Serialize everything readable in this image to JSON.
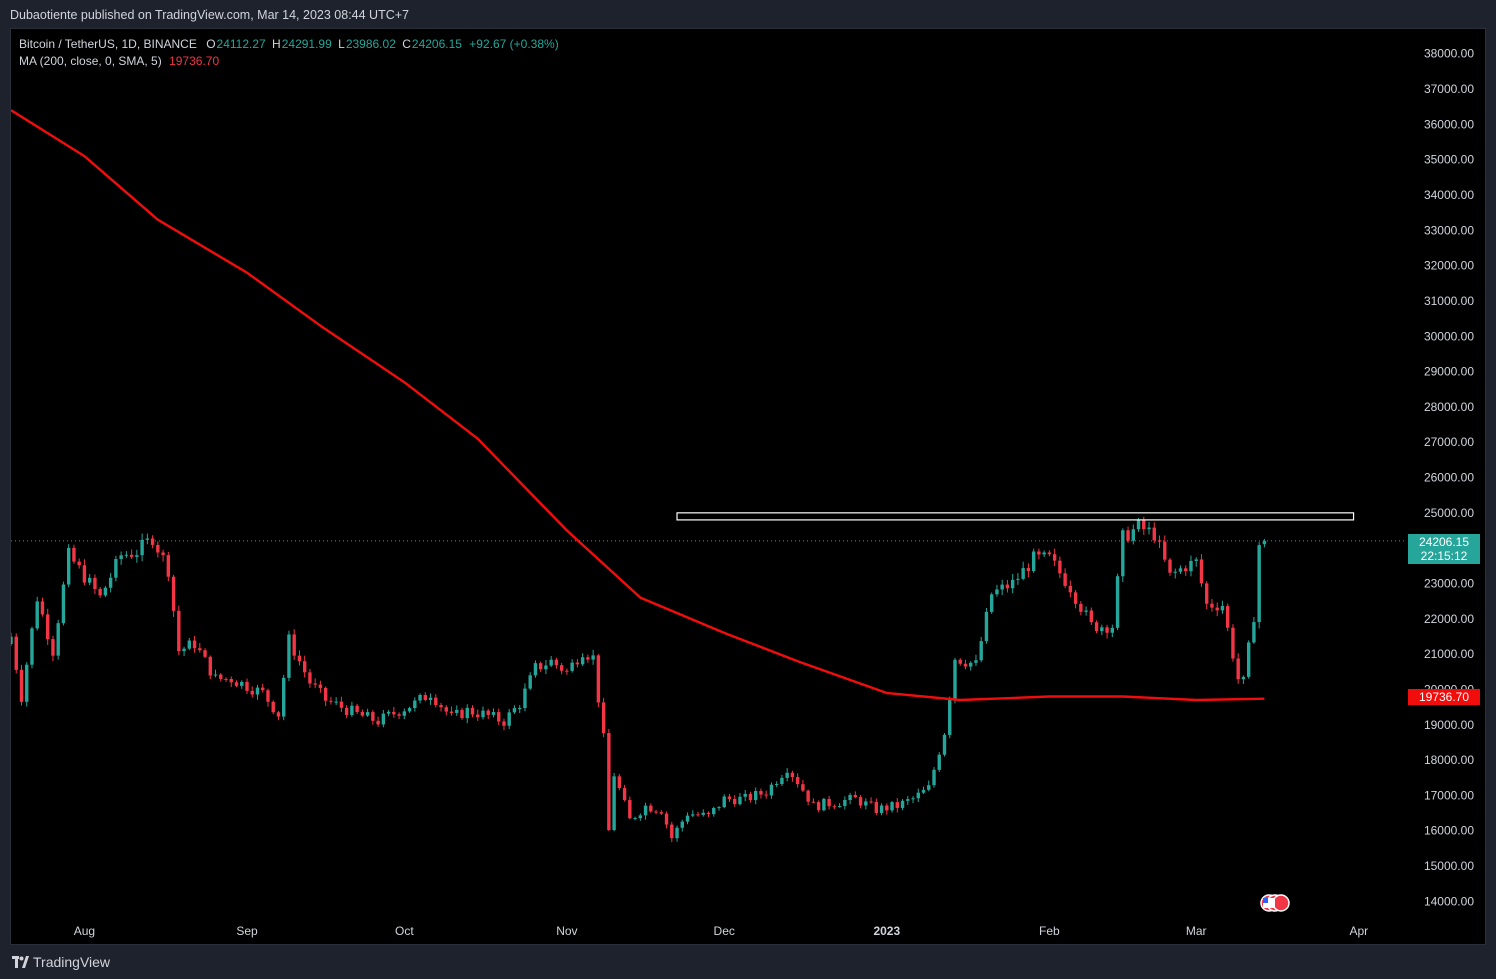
{
  "header": {
    "published_text": "Dubaotiente published on TradingView.com, Mar 14, 2023 08:44 UTC+7"
  },
  "legend": {
    "symbol": "Bitcoin / TetherUS, 1D, BINANCE",
    "open_label": "O",
    "open": "24112.27",
    "high_label": "H",
    "high": "24291.99",
    "low_label": "L",
    "low": "23986.02",
    "close_label": "C",
    "close": "24206.15",
    "change": "+92.67 (+0.38%)",
    "ma_label": "MA (200, close, 0, SMA, 5)",
    "ma_value": "19736.70"
  },
  "badges": {
    "last_price": "24206.15",
    "countdown": "22:15:12",
    "ma_price": "19736.70"
  },
  "footer": {
    "brand": "TradingView"
  },
  "colors": {
    "up": "#26a69a",
    "down": "#f23645",
    "ma": "#f20d0d",
    "background": "#000000",
    "axis_text": "#d1d4dc",
    "box": "#ffffff"
  },
  "chart_data": {
    "type": "candlestick",
    "symbol": "BTCUSDT",
    "interval": "1D",
    "y_ticks": [
      14000,
      15000,
      16000,
      17000,
      18000,
      19000,
      20000,
      21000,
      22000,
      23000,
      24000,
      25000,
      26000,
      27000,
      28000,
      29000,
      30000,
      31000,
      32000,
      33000,
      34000,
      35000,
      36000,
      37000,
      38000
    ],
    "ylim": [
      13500,
      38700
    ],
    "x_range": [
      "2022-07-18",
      "2023-04-10"
    ],
    "x_ticks": [
      {
        "label": "Aug",
        "date": "2022-08-01"
      },
      {
        "label": "Sep",
        "date": "2022-09-01"
      },
      {
        "label": "Oct",
        "date": "2022-10-01"
      },
      {
        "label": "Nov",
        "date": "2022-11-01"
      },
      {
        "label": "Dec",
        "date": "2022-12-01"
      },
      {
        "label": "2023",
        "date": "2023-01-01",
        "bold": true
      },
      {
        "label": "Feb",
        "date": "2023-02-01"
      },
      {
        "label": "Mar",
        "date": "2023-03-01"
      },
      {
        "label": "Apr",
        "date": "2023-04-01"
      }
    ],
    "close_series": [
      {
        "d": "2022-07-18",
        "c": 21500
      },
      {
        "d": "2022-07-20",
        "c": 19800
      },
      {
        "d": "2022-07-23",
        "c": 22600
      },
      {
        "d": "2022-07-26",
        "c": 21100
      },
      {
        "d": "2022-07-29",
        "c": 23800
      },
      {
        "d": "2022-08-01",
        "c": 23200
      },
      {
        "d": "2022-08-04",
        "c": 22600
      },
      {
        "d": "2022-08-08",
        "c": 23800
      },
      {
        "d": "2022-08-11",
        "c": 23900
      },
      {
        "d": "2022-08-14",
        "c": 24300
      },
      {
        "d": "2022-08-17",
        "c": 23400
      },
      {
        "d": "2022-08-19",
        "c": 21100
      },
      {
        "d": "2022-08-22",
        "c": 21300
      },
      {
        "d": "2022-08-26",
        "c": 20300
      },
      {
        "d": "2022-08-29",
        "c": 20300
      },
      {
        "d": "2022-09-01",
        "c": 20100
      },
      {
        "d": "2022-09-04",
        "c": 19900
      },
      {
        "d": "2022-09-07",
        "c": 19300
      },
      {
        "d": "2022-09-09",
        "c": 21400
      },
      {
        "d": "2022-09-13",
        "c": 20200
      },
      {
        "d": "2022-09-16",
        "c": 19700
      },
      {
        "d": "2022-09-19",
        "c": 19500
      },
      {
        "d": "2022-09-22",
        "c": 19300
      },
      {
        "d": "2022-09-26",
        "c": 19100
      },
      {
        "d": "2022-09-30",
        "c": 19400
      },
      {
        "d": "2022-10-03",
        "c": 19600
      },
      {
        "d": "2022-10-06",
        "c": 19900
      },
      {
        "d": "2022-10-10",
        "c": 19200
      },
      {
        "d": "2022-10-13",
        "c": 19400
      },
      {
        "d": "2022-10-16",
        "c": 19300
      },
      {
        "d": "2022-10-20",
        "c": 19100
      },
      {
        "d": "2022-10-23",
        "c": 19600
      },
      {
        "d": "2022-10-26",
        "c": 20600
      },
      {
        "d": "2022-10-29",
        "c": 20800
      },
      {
        "d": "2022-11-01",
        "c": 20500
      },
      {
        "d": "2022-11-04",
        "c": 21100
      },
      {
        "d": "2022-11-06",
        "c": 20900
      },
      {
        "d": "2022-11-08",
        "c": 18600
      },
      {
        "d": "2022-11-09",
        "c": 16000
      },
      {
        "d": "2022-11-10",
        "c": 17600
      },
      {
        "d": "2022-11-13",
        "c": 16300
      },
      {
        "d": "2022-11-16",
        "c": 16700
      },
      {
        "d": "2022-11-19",
        "c": 16600
      },
      {
        "d": "2022-11-21",
        "c": 15800
      },
      {
        "d": "2022-11-24",
        "c": 16500
      },
      {
        "d": "2022-11-28",
        "c": 16400
      },
      {
        "d": "2022-12-01",
        "c": 16900
      },
      {
        "d": "2022-12-05",
        "c": 16900
      },
      {
        "d": "2022-12-09",
        "c": 17100
      },
      {
        "d": "2022-12-13",
        "c": 17800
      },
      {
        "d": "2022-12-15",
        "c": 17400
      },
      {
        "d": "2022-12-18",
        "c": 16700
      },
      {
        "d": "2022-12-22",
        "c": 16800
      },
      {
        "d": "2022-12-26",
        "c": 16900
      },
      {
        "d": "2022-12-30",
        "c": 16600
      },
      {
        "d": "2023-01-03",
        "c": 16700
      },
      {
        "d": "2023-01-06",
        "c": 16900
      },
      {
        "d": "2023-01-09",
        "c": 17200
      },
      {
        "d": "2023-01-12",
        "c": 18800
      },
      {
        "d": "2023-01-14",
        "c": 20900
      },
      {
        "d": "2023-01-18",
        "c": 20700
      },
      {
        "d": "2023-01-21",
        "c": 22700
      },
      {
        "d": "2023-01-25",
        "c": 23000
      },
      {
        "d": "2023-01-29",
        "c": 23700
      },
      {
        "d": "2023-02-01",
        "c": 23700
      },
      {
        "d": "2023-02-05",
        "c": 22900
      },
      {
        "d": "2023-02-09",
        "c": 21800
      },
      {
        "d": "2023-02-13",
        "c": 21800
      },
      {
        "d": "2023-02-15",
        "c": 24300
      },
      {
        "d": "2023-02-18",
        "c": 24600
      },
      {
        "d": "2023-02-21",
        "c": 24400
      },
      {
        "d": "2023-02-24",
        "c": 23200
      },
      {
        "d": "2023-02-27",
        "c": 23500
      },
      {
        "d": "2023-03-01",
        "c": 23600
      },
      {
        "d": "2023-03-03",
        "c": 22400
      },
      {
        "d": "2023-03-06",
        "c": 22400
      },
      {
        "d": "2023-03-09",
        "c": 20300
      },
      {
        "d": "2023-03-10",
        "c": 20200
      },
      {
        "d": "2023-03-12",
        "c": 22100
      },
      {
        "d": "2023-03-13",
        "c": 24100
      },
      {
        "d": "2023-03-14",
        "c": 24206.15
      }
    ],
    "ma200": [
      {
        "d": "2022-07-18",
        "v": 36400
      },
      {
        "d": "2022-08-01",
        "v": 35100
      },
      {
        "d": "2022-08-15",
        "v": 33300
      },
      {
        "d": "2022-09-01",
        "v": 31800
      },
      {
        "d": "2022-09-15",
        "v": 30300
      },
      {
        "d": "2022-10-01",
        "v": 28700
      },
      {
        "d": "2022-10-15",
        "v": 27100
      },
      {
        "d": "2022-11-01",
        "v": 24500
      },
      {
        "d": "2022-11-15",
        "v": 22600
      },
      {
        "d": "2022-12-01",
        "v": 21600
      },
      {
        "d": "2022-12-15",
        "v": 20800
      },
      {
        "d": "2023-01-01",
        "v": 19900
      },
      {
        "d": "2023-01-15",
        "v": 19700
      },
      {
        "d": "2023-02-01",
        "v": 19800
      },
      {
        "d": "2023-02-15",
        "v": 19800
      },
      {
        "d": "2023-03-01",
        "v": 19700
      },
      {
        "d": "2023-03-14",
        "v": 19736.7
      }
    ],
    "resistance_zone": {
      "from": "2022-11-22",
      "to": "2023-03-31",
      "low": 24800,
      "high": 25000
    },
    "last_price": 24206.15,
    "ma_last": 19736.7
  }
}
